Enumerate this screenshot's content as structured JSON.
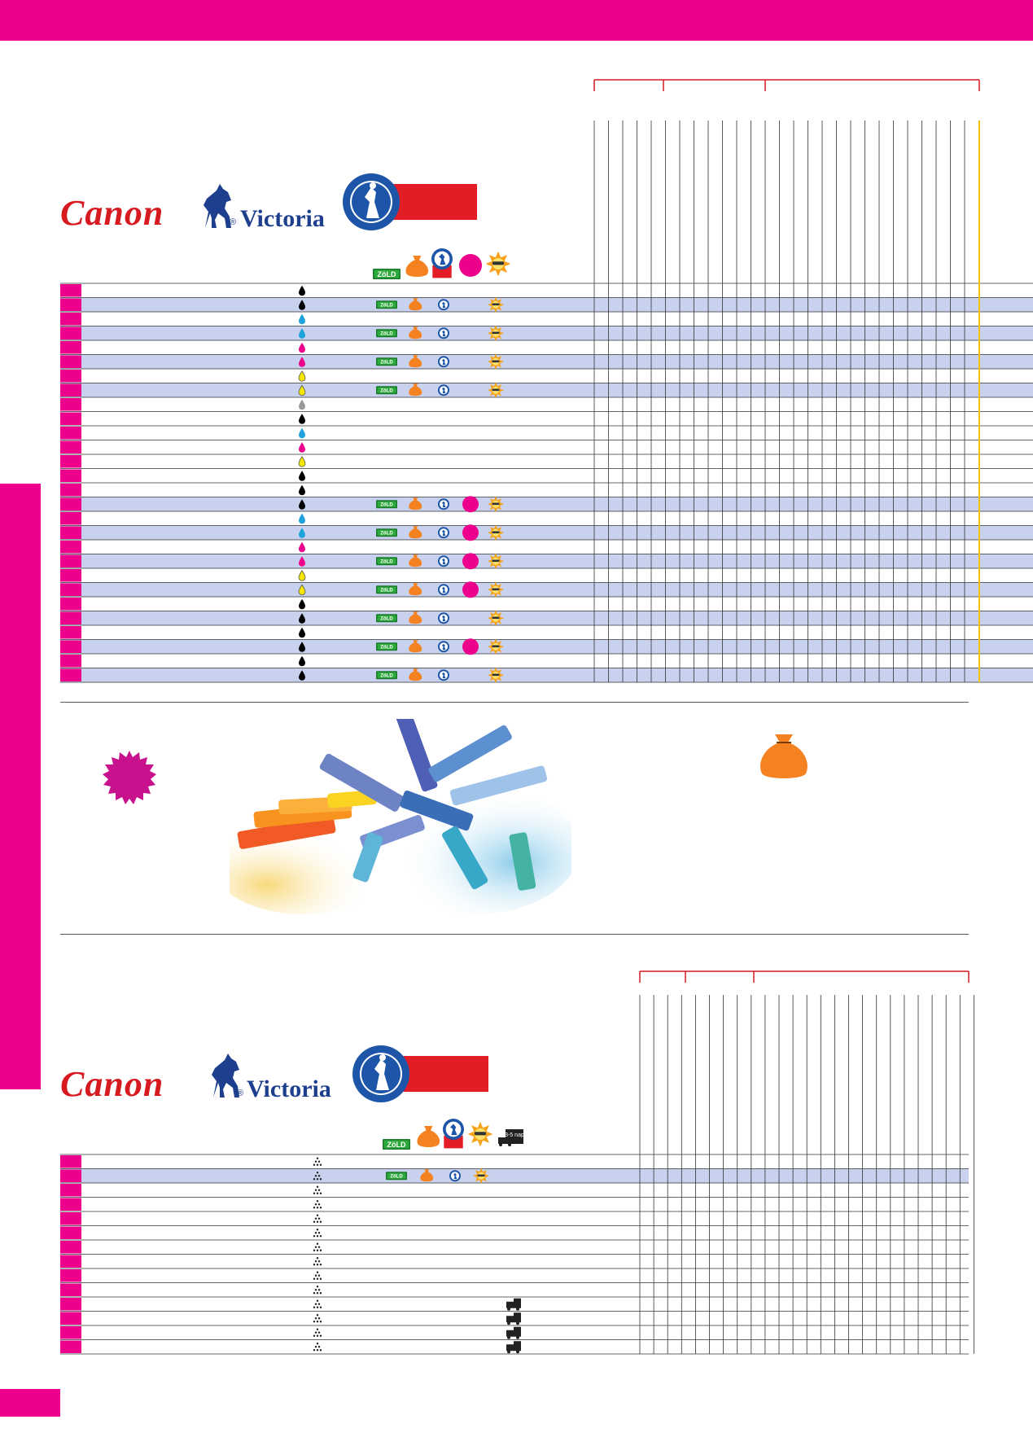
{
  "brand": {
    "canon": "Canon",
    "victoria": "Victoria"
  },
  "registered_mark": "®",
  "badge_text": {
    "zold": "ZöLD",
    "delivery": "3-5 nap"
  },
  "colors": {
    "magenta": "#ec008c",
    "row_highlight": "#c8d2ee",
    "bracket_red": "#d71920",
    "cutoff_yellow": "#f5c000",
    "black_drop": "#000000",
    "cyan_drop": "#1ea3dc",
    "magenta_drop": "#ec008c",
    "yellow_drop": "#f7e600",
    "gray_drop": "#9a9a9a",
    "bag_orange": "#f58220"
  },
  "icons": {
    "ink_drop": "drop-icon",
    "toner_dots": "toner-icon",
    "green_badge": "zold-badge-icon",
    "money_bag": "money-bag-icon",
    "brand_seal": "victoria-seal-icon",
    "pink_burst": "pink-burst-icon",
    "sun_star": "sun-star-icon",
    "truck": "truck-icon"
  },
  "section1": {
    "header_icons": [
      "zold",
      "bag",
      "seal",
      "pink",
      "sun"
    ],
    "rows": [
      {
        "drop": "black",
        "hl": false,
        "icons": []
      },
      {
        "drop": "black",
        "hl": true,
        "icons": [
          "zold",
          "bag",
          "seal",
          "sun"
        ]
      },
      {
        "drop": "cyan",
        "hl": false,
        "icons": []
      },
      {
        "drop": "cyan",
        "hl": true,
        "icons": [
          "zold",
          "bag",
          "seal",
          "sun"
        ]
      },
      {
        "drop": "magenta",
        "hl": false,
        "icons": []
      },
      {
        "drop": "magenta",
        "hl": true,
        "icons": [
          "zold",
          "bag",
          "seal",
          "sun"
        ]
      },
      {
        "drop": "yellow",
        "hl": false,
        "icons": []
      },
      {
        "drop": "yellow",
        "hl": true,
        "icons": [
          "zold",
          "bag",
          "seal",
          "sun"
        ]
      },
      {
        "drop": "gray",
        "hl": false,
        "icons": []
      },
      {
        "drop": "black",
        "hl": false,
        "icons": []
      },
      {
        "drop": "cyan",
        "hl": false,
        "icons": []
      },
      {
        "drop": "magenta",
        "hl": false,
        "icons": []
      },
      {
        "drop": "yellow",
        "hl": false,
        "icons": []
      },
      {
        "drop": "black",
        "hl": false,
        "icons": []
      },
      {
        "drop": "black",
        "hl": false,
        "icons": []
      },
      {
        "drop": "black",
        "hl": true,
        "icons": [
          "zold",
          "bag",
          "seal",
          "pink",
          "sun"
        ]
      },
      {
        "drop": "cyan",
        "hl": false,
        "icons": []
      },
      {
        "drop": "cyan",
        "hl": true,
        "icons": [
          "zold",
          "bag",
          "seal",
          "pink",
          "sun"
        ]
      },
      {
        "drop": "magenta",
        "hl": false,
        "icons": []
      },
      {
        "drop": "magenta",
        "hl": true,
        "icons": [
          "zold",
          "bag",
          "seal",
          "pink",
          "sun"
        ]
      },
      {
        "drop": "yellow",
        "hl": false,
        "icons": []
      },
      {
        "drop": "yellow",
        "hl": true,
        "icons": [
          "zold",
          "bag",
          "seal",
          "pink",
          "sun"
        ]
      },
      {
        "drop": "black",
        "hl": false,
        "icons": []
      },
      {
        "drop": "black",
        "hl": true,
        "icons": [
          "zold",
          "bag",
          "seal",
          "sun"
        ]
      },
      {
        "drop": "black",
        "hl": false,
        "icons": []
      },
      {
        "drop": "black",
        "hl": true,
        "icons": [
          "zold",
          "bag",
          "seal",
          "pink",
          "sun"
        ]
      },
      {
        "drop": "black",
        "hl": false,
        "icons": []
      },
      {
        "drop": "black",
        "hl": true,
        "icons": [
          "zold",
          "bag",
          "seal",
          "sun"
        ]
      }
    ]
  },
  "section2": {
    "header_icons": [
      "zold",
      "bag",
      "seal",
      "sun",
      "truck"
    ],
    "rows": [
      {
        "drop": "toner",
        "hl": false,
        "icons": []
      },
      {
        "drop": "toner",
        "hl": true,
        "icons": [
          "zold",
          "bag",
          "seal",
          "sun"
        ]
      },
      {
        "drop": "toner",
        "hl": false,
        "icons": []
      },
      {
        "drop": "toner",
        "hl": false,
        "icons": []
      },
      {
        "drop": "toner",
        "hl": false,
        "icons": []
      },
      {
        "drop": "toner",
        "hl": false,
        "icons": []
      },
      {
        "drop": "toner",
        "hl": false,
        "icons": []
      },
      {
        "drop": "toner",
        "hl": false,
        "icons": []
      },
      {
        "drop": "toner",
        "hl": false,
        "icons": []
      },
      {
        "drop": "toner",
        "hl": false,
        "icons": []
      },
      {
        "drop": "toner",
        "hl": false,
        "icons": [
          "truck"
        ]
      },
      {
        "drop": "toner",
        "hl": false,
        "icons": [
          "truck"
        ]
      },
      {
        "drop": "toner",
        "hl": false,
        "icons": [
          "truck"
        ]
      },
      {
        "drop": "toner",
        "hl": false,
        "icons": [
          "truck"
        ]
      }
    ]
  }
}
